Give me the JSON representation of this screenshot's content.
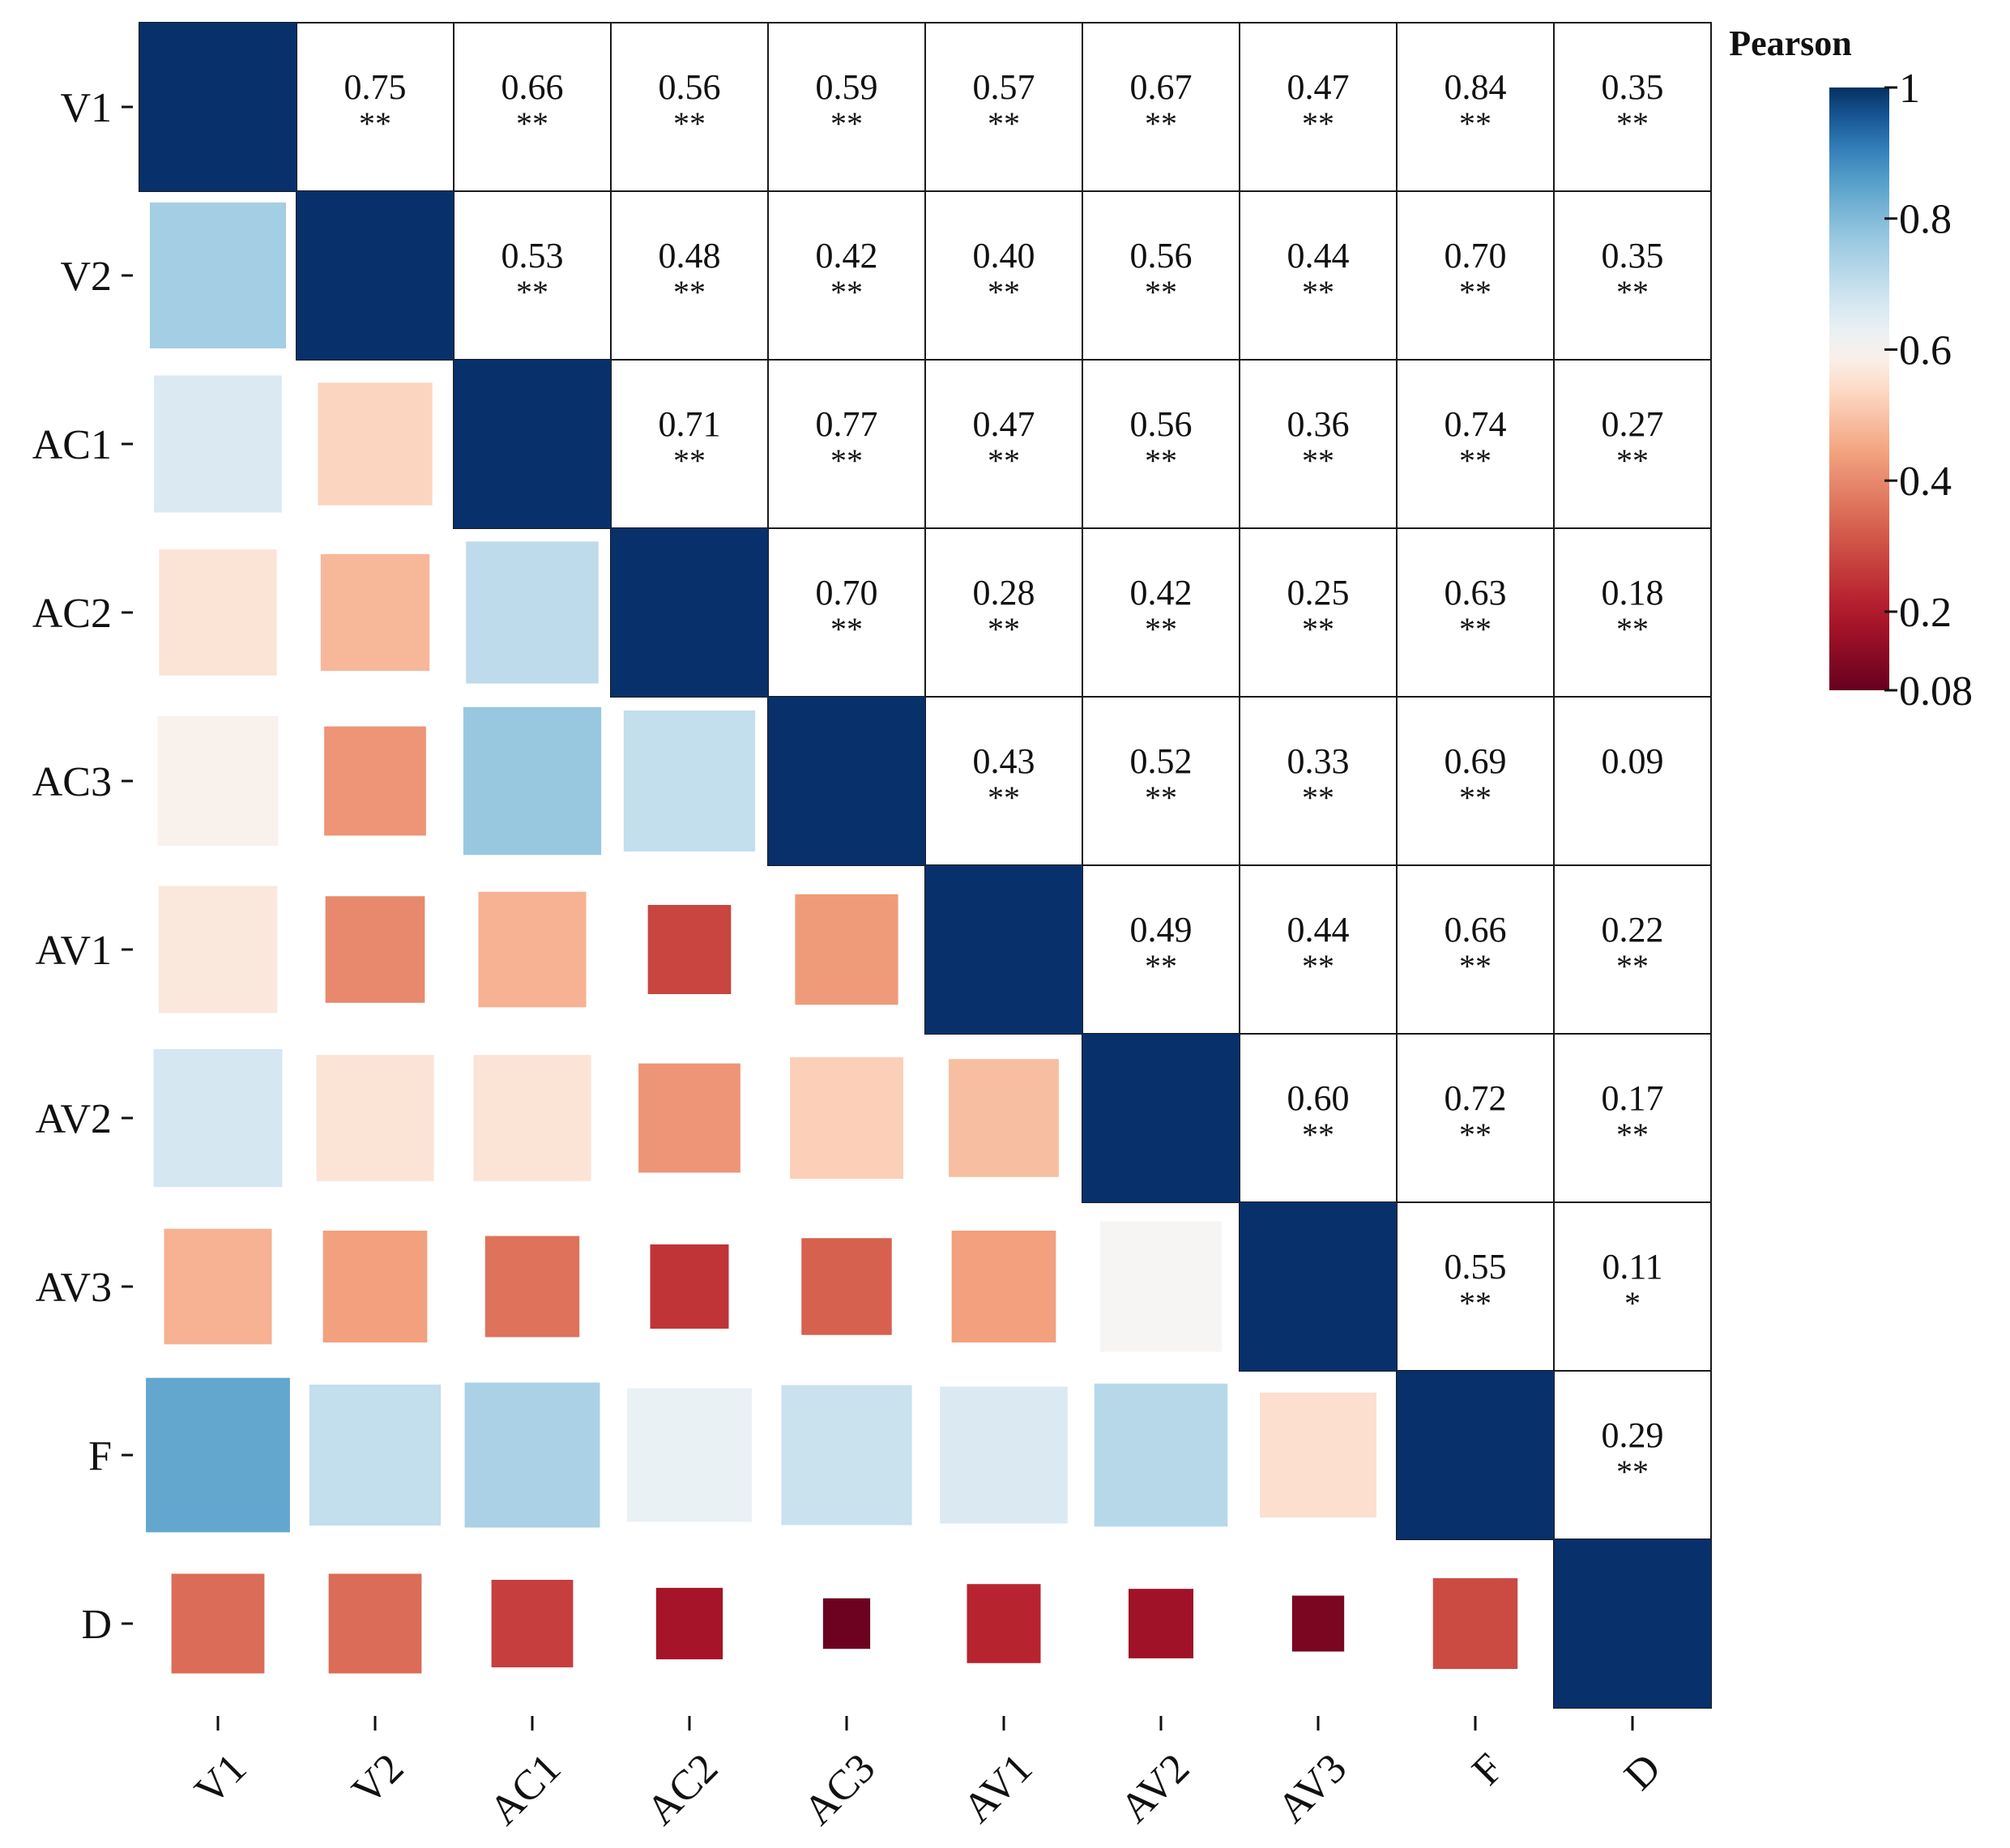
{
  "chart_data": {
    "type": "heatmap",
    "title": "",
    "variables": [
      "V1",
      "V2",
      "AC1",
      "AC2",
      "AC3",
      "AV1",
      "AV2",
      "AV3",
      "F",
      "D"
    ],
    "matrix": [
      [
        1.0,
        0.75,
        0.66,
        0.56,
        0.59,
        0.57,
        0.67,
        0.47,
        0.84,
        0.35
      ],
      [
        0.75,
        1.0,
        0.53,
        0.48,
        0.42,
        0.4,
        0.56,
        0.44,
        0.7,
        0.35
      ],
      [
        0.66,
        0.53,
        1.0,
        0.71,
        0.77,
        0.47,
        0.56,
        0.36,
        0.74,
        0.27
      ],
      [
        0.56,
        0.48,
        0.71,
        1.0,
        0.7,
        0.28,
        0.42,
        0.25,
        0.63,
        0.18
      ],
      [
        0.59,
        0.42,
        0.77,
        0.7,
        1.0,
        0.43,
        0.52,
        0.33,
        0.69,
        0.09
      ],
      [
        0.57,
        0.4,
        0.47,
        0.28,
        0.43,
        1.0,
        0.49,
        0.44,
        0.66,
        0.22
      ],
      [
        0.67,
        0.56,
        0.56,
        0.42,
        0.52,
        0.49,
        1.0,
        0.6,
        0.72,
        0.17
      ],
      [
        0.47,
        0.44,
        0.36,
        0.25,
        0.33,
        0.44,
        0.6,
        1.0,
        0.55,
        0.11
      ],
      [
        0.84,
        0.7,
        0.74,
        0.63,
        0.69,
        0.66,
        0.72,
        0.55,
        1.0,
        0.29
      ],
      [
        0.35,
        0.35,
        0.27,
        0.18,
        0.09,
        0.22,
        0.17,
        0.11,
        0.29,
        1.0
      ]
    ],
    "labels": [
      [
        "",
        "0.75",
        "0.66",
        "0.56",
        "0.59",
        "0.57",
        "0.67",
        "0.47",
        "0.84",
        "0.35"
      ],
      [
        "",
        "",
        "0.53",
        "0.48",
        "0.42",
        "0.40",
        "0.56",
        "0.44",
        "0.70",
        "0.35"
      ],
      [
        "",
        "",
        "",
        "0.71",
        "0.77",
        "0.47",
        "0.56",
        "0.36",
        "0.74",
        "0.27"
      ],
      [
        "",
        "",
        "",
        "",
        "0.70",
        "0.28",
        "0.42",
        "0.25",
        "0.63",
        "0.18"
      ],
      [
        "",
        "",
        "",
        "",
        "",
        "0.43",
        "0.52",
        "0.33",
        "0.69",
        "0.09"
      ],
      [
        "",
        "",
        "",
        "",
        "",
        "",
        "0.49",
        "0.44",
        "0.66",
        "0.22"
      ],
      [
        "",
        "",
        "",
        "",
        "",
        "",
        "",
        "0.60",
        "0.72",
        "0.17"
      ],
      [
        "",
        "",
        "",
        "",
        "",
        "",
        "",
        "",
        "0.55",
        "0.11"
      ],
      [
        "",
        "",
        "",
        "",
        "",
        "",
        "",
        "",
        "",
        "0.29"
      ],
      [
        "",
        "",
        "",
        "",
        "",
        "",
        "",
        "",
        "",
        ""
      ]
    ],
    "significance": [
      [
        "",
        "**",
        "**",
        "**",
        "**",
        "**",
        "**",
        "**",
        "**",
        "**"
      ],
      [
        "",
        "",
        "**",
        "**",
        "**",
        "**",
        "**",
        "**",
        "**",
        "**"
      ],
      [
        "",
        "",
        "",
        "**",
        "**",
        "**",
        "**",
        "**",
        "**",
        "**"
      ],
      [
        "",
        "",
        "",
        "",
        "**",
        "**",
        "**",
        "**",
        "**",
        "**"
      ],
      [
        "",
        "",
        "",
        "",
        "",
        "**",
        "**",
        "**",
        "**",
        ""
      ],
      [
        "",
        "",
        "",
        "",
        "",
        "",
        "**",
        "**",
        "**",
        "**"
      ],
      [
        "",
        "",
        "",
        "",
        "",
        "",
        "",
        "**",
        "**",
        "**"
      ],
      [
        "",
        "",
        "",
        "",
        "",
        "",
        "",
        "",
        "**",
        "*"
      ],
      [
        "",
        "",
        "",
        "",
        "",
        "",
        "",
        "",
        "",
        "**"
      ],
      [
        "",
        "",
        "",
        "",
        "",
        "",
        "",
        "",
        "",
        ""
      ]
    ],
    "upper_triangle": "numeric values with significance stars",
    "lower_triangle": "colored squares sized by correlation",
    "diagonal": "full dark blue cells",
    "color_scale": {
      "title": "Pearson",
      "min": 0.08,
      "max": 1,
      "ticks": [
        1,
        0.8,
        0.6,
        0.4,
        0.2,
        0.08
      ],
      "tick_labels": [
        "1",
        "0.8",
        "0.6",
        "0.4",
        "0.2",
        "0.08"
      ],
      "colormap": "RdBu"
    }
  },
  "colors": {
    "diagonal": "#08306b",
    "grid": "#1a1a1a",
    "text": "#111111"
  }
}
